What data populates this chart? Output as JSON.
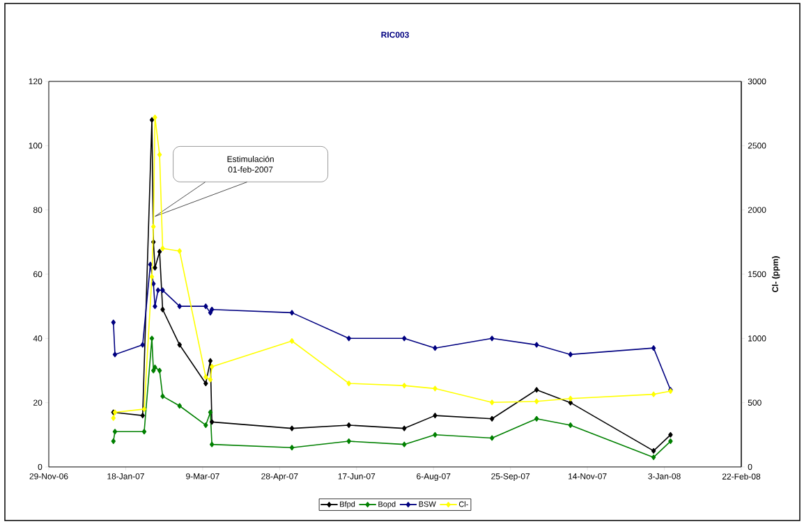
{
  "chart_data": {
    "type": "line",
    "title": "RIC003",
    "y2label": "Cl- (ppm)",
    "xlim": [
      "2006-11-29",
      "2008-02-22"
    ],
    "xticks": [
      {
        "value": "2006-11-29",
        "label": "29-Nov-06"
      },
      {
        "value": "2007-01-18",
        "label": "18-Jan-07"
      },
      {
        "value": "2007-03-09",
        "label": "9-Mar-07"
      },
      {
        "value": "2007-04-28",
        "label": "28-Apr-07"
      },
      {
        "value": "2007-06-17",
        "label": "17-Jun-07"
      },
      {
        "value": "2007-08-06",
        "label": "6-Aug-07"
      },
      {
        "value": "2007-09-25",
        "label": "25-Sep-07"
      },
      {
        "value": "2007-11-14",
        "label": "14-Nov-07"
      },
      {
        "value": "2008-01-03",
        "label": "3-Jan-08"
      },
      {
        "value": "2008-02-22",
        "label": "22-Feb-08"
      }
    ],
    "ylim": [
      0,
      120
    ],
    "yticks": [
      0,
      20,
      40,
      60,
      80,
      100,
      120
    ],
    "y2lim": [
      0,
      3000
    ],
    "y2ticks": [
      0,
      500,
      1000,
      1500,
      2000,
      2500,
      3000
    ],
    "marker": "diamond",
    "legend": "bottom",
    "grid": false,
    "annotations": [
      "Estimulación 01-feb-2007"
    ],
    "series": [
      {
        "name": "Bfpd",
        "color": "#000000",
        "x": [
          "2007-01-10",
          "2007-01-29",
          "2007-02-04",
          "2007-02-05",
          "2007-02-06",
          "2007-02-09",
          "2007-02-11",
          "2007-02-22",
          "2007-03-11",
          "2007-03-14",
          "2007-03-15",
          "2007-05-06",
          "2007-06-12",
          "2007-07-18",
          "2007-08-07",
          "2007-09-13",
          "2007-10-12",
          "2007-11-03",
          "2007-12-27",
          "2008-01-07"
        ],
        "values": [
          17,
          16,
          108,
          70,
          62,
          67,
          49,
          38,
          26,
          33,
          14,
          12,
          13,
          12,
          16,
          15,
          24,
          20,
          5,
          10
        ]
      },
      {
        "name": "Bopd",
        "color": "#008000",
        "x": [
          "2007-01-10",
          "2007-01-11",
          "2007-01-30",
          "2007-02-04",
          "2007-02-05",
          "2007-02-06",
          "2007-02-09",
          "2007-02-11",
          "2007-02-22",
          "2007-03-11",
          "2007-03-14",
          "2007-03-15",
          "2007-05-06",
          "2007-06-12",
          "2007-07-18",
          "2007-08-07",
          "2007-09-13",
          "2007-10-12",
          "2007-11-03",
          "2007-12-27",
          "2008-01-07"
        ],
        "values": [
          8,
          11,
          11,
          40,
          30,
          31,
          30,
          22,
          19,
          13,
          17,
          7,
          6,
          8,
          7,
          10,
          9,
          15,
          13,
          3,
          8
        ]
      },
      {
        "name": "BSW",
        "color": "#000080",
        "x": [
          "2007-01-10",
          "2007-01-11",
          "2007-01-29",
          "2007-02-03",
          "2007-02-05",
          "2007-02-06",
          "2007-02-08",
          "2007-02-11",
          "2007-02-22",
          "2007-03-11",
          "2007-03-14",
          "2007-03-15",
          "2007-05-06",
          "2007-06-12",
          "2007-07-18",
          "2007-08-07",
          "2007-09-13",
          "2007-10-12",
          "2007-11-03",
          "2007-12-27",
          "2008-01-07"
        ],
        "values": [
          45,
          35,
          38,
          63,
          57,
          50,
          55,
          55,
          50,
          50,
          48,
          49,
          48,
          40,
          40,
          37,
          40,
          38,
          35,
          37,
          24
        ]
      },
      {
        "name": "Cl-",
        "color": "#ffff00",
        "axis": "y2",
        "x": [
          "2007-01-10",
          "2007-01-11",
          "2007-01-30",
          "2007-02-04",
          "2007-02-05",
          "2007-02-06",
          "2007-02-09",
          "2007-02-11",
          "2007-02-22",
          "2007-03-11",
          "2007-03-14",
          "2007-03-15",
          "2007-05-06",
          "2007-06-12",
          "2007-07-18",
          "2007-08-07",
          "2007-09-13",
          "2007-10-12",
          "2007-11-03",
          "2007-12-27",
          "2008-01-07"
        ],
        "values": [
          380,
          425,
          450,
          1480,
          1870,
          2720,
          2430,
          1700,
          1680,
          700,
          680,
          780,
          980,
          650,
          633,
          610,
          502,
          510,
          532,
          565,
          590
        ]
      }
    ]
  }
}
